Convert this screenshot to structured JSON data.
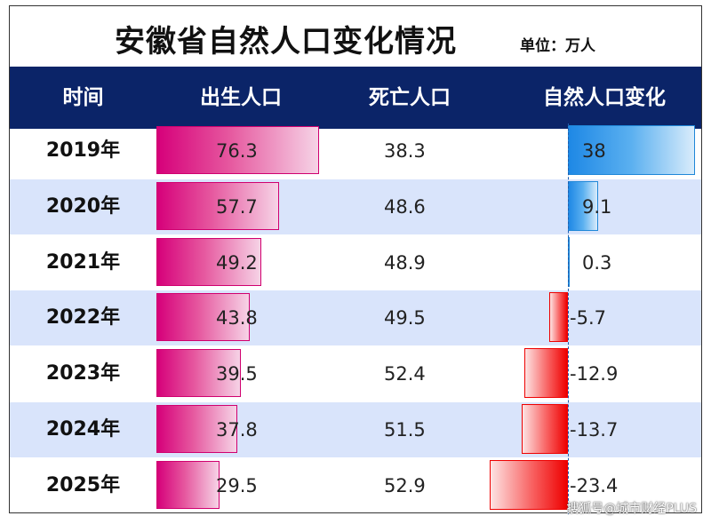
{
  "title": "安徽省自然人口变化情况",
  "unit": "单位：万人",
  "headers": {
    "time": "时间",
    "births": "出生人口",
    "deaths": "死亡人口",
    "natural_change": "自然人口变化"
  },
  "colors": {
    "header_bg": "#0b2468",
    "row_alt": "#d9e4fb",
    "birth_bar": "#d6007a",
    "positive_bar": "#1e88e5",
    "negative_bar": "#ee0000"
  },
  "watermark": "搜狐号@城市财经PLUS",
  "chart_data": {
    "type": "table",
    "title": "安徽省自然人口变化情况",
    "unit": "万人",
    "columns": [
      "时间",
      "出生人口",
      "死亡人口",
      "自然人口变化"
    ],
    "rows": [
      {
        "year": "2019年",
        "births": 76.3,
        "deaths": 38.3,
        "change": 38
      },
      {
        "year": "2020年",
        "births": 57.7,
        "deaths": 48.6,
        "change": 9.1
      },
      {
        "year": "2021年",
        "births": 49.2,
        "deaths": 48.9,
        "change": 0.3
      },
      {
        "year": "2022年",
        "births": 43.8,
        "deaths": 49.5,
        "change": -5.7
      },
      {
        "year": "2023年",
        "births": 39.5,
        "deaths": 52.4,
        "change": -12.9
      },
      {
        "year": "2024年",
        "births": 37.8,
        "deaths": 51.5,
        "change": -13.7
      },
      {
        "year": "2025年",
        "births": 29.5,
        "deaths": 52.9,
        "change": -23.4
      }
    ]
  }
}
